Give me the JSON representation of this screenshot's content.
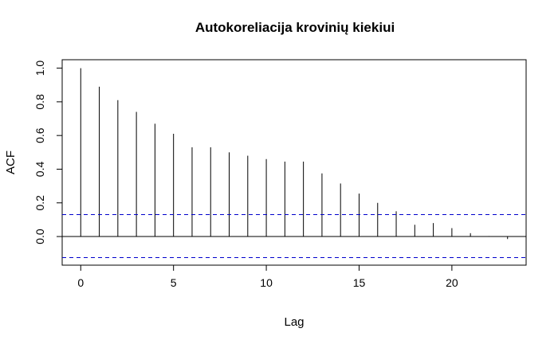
{
  "chart_data": {
    "type": "bar",
    "title": "Autokoreliacija krovinių kiekiui",
    "xlabel": "Lag",
    "ylabel": "ACF",
    "xlim": [
      -1,
      24
    ],
    "ylim": [
      -0.17,
      1.05
    ],
    "x_ticks": [
      0,
      5,
      10,
      15,
      20
    ],
    "y_ticks": [
      0.0,
      0.2,
      0.4,
      0.6,
      0.8,
      1.0
    ],
    "y_tick_labels": [
      "0.0",
      "0.2",
      "0.4",
      "0.6",
      "0.8",
      "1.0"
    ],
    "lags": [
      0,
      1,
      2,
      3,
      4,
      5,
      6,
      7,
      8,
      9,
      10,
      11,
      12,
      13,
      14,
      15,
      16,
      17,
      18,
      19,
      20,
      21,
      22,
      23
    ],
    "acf": [
      1.0,
      0.89,
      0.81,
      0.74,
      0.67,
      0.61,
      0.53,
      0.53,
      0.5,
      0.48,
      0.46,
      0.445,
      0.445,
      0.375,
      0.315,
      0.255,
      0.2,
      0.15,
      0.07,
      0.08,
      0.05,
      0.02,
      0.003,
      -0.015
    ],
    "confidence_bounds": [
      0.13,
      -0.125
    ],
    "colors": {
      "bars": "#000000",
      "zero_line": "#000000",
      "bounds": "#0000cc"
    },
    "grid": false
  }
}
